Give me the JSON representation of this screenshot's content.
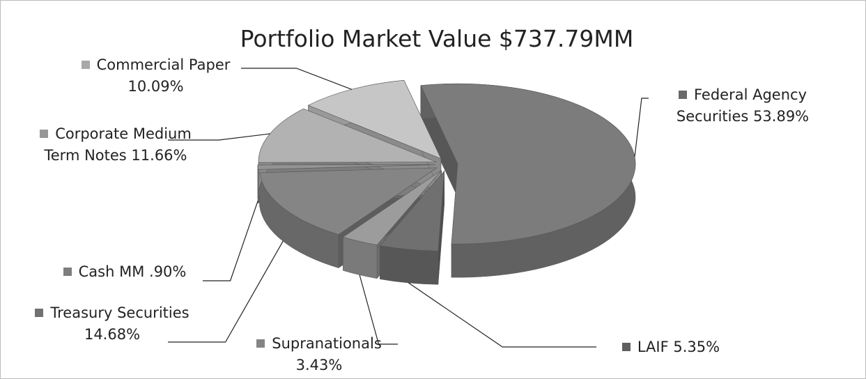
{
  "chart_data": {
    "type": "pie",
    "title": "Portfolio Market Value $737.79MM",
    "categories": [
      "Federal Agency Securities",
      "LAIF",
      "Supranationals",
      "Treasury Securities",
      "Cash MM",
      "Corporate Medium Term Notes",
      "Commercial Paper"
    ],
    "values": [
      53.89,
      5.35,
      3.43,
      14.68,
      0.9,
      11.66,
      10.09
    ],
    "value_labels": [
      "53.89%",
      "5.35%",
      "3.43%",
      "14.68%",
      ".90%",
      "11.66%",
      "10.09%"
    ],
    "colors": [
      "#7c7c7c",
      "#707070",
      "#9c9c9c",
      "#858585",
      "#939393",
      "#b2b2b2",
      "#c6c6c6"
    ]
  }
}
